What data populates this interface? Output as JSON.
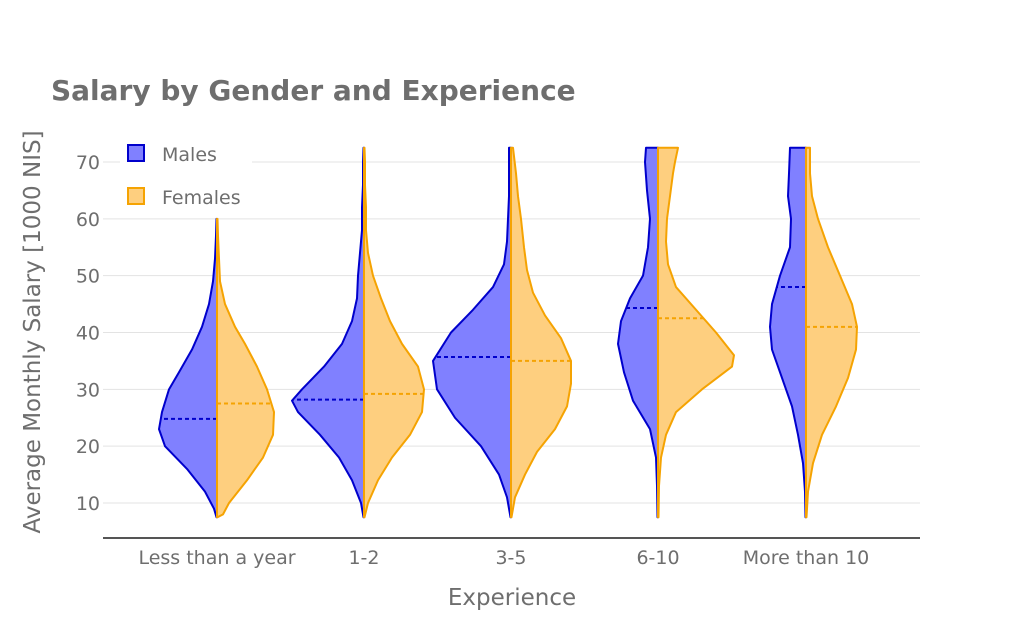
{
  "chart_data": {
    "type": "violin",
    "title": "Salary by Gender and Experience",
    "xlabel": "Experience",
    "ylabel": "Average Monthly Salary [1000 NIS]",
    "categories": [
      "Less than a year",
      "1-2",
      "3-5",
      "6-10",
      "More than 10"
    ],
    "y_ticks": [
      10,
      20,
      30,
      40,
      50,
      60,
      70
    ],
    "ylim": [
      4,
      74
    ],
    "grid": true,
    "legend_position": "top-left",
    "series": [
      {
        "name": "Males",
        "side": "negative",
        "fill_color": "#8080ff",
        "line_color": "#0000cc",
        "medians": [
          24.8,
          28.2,
          35.7,
          44.3,
          48
        ],
        "ranges": [
          [
            7.5,
            60
          ],
          [
            7.5,
            72.5
          ],
          [
            7.5,
            72.5
          ],
          [
            7.5,
            72.5
          ],
          [
            7.5,
            72.5
          ]
        ],
        "profiles": [
          [
            [
              7.5,
              0.5
            ],
            [
              9,
              3
            ],
            [
              12,
              12
            ],
            [
              16,
              30
            ],
            [
              20,
              52
            ],
            [
              23,
              58
            ],
            [
              26,
              55
            ],
            [
              30,
              48
            ],
            [
              33,
              38
            ],
            [
              37,
              25
            ],
            [
              41,
              15
            ],
            [
              45,
              8
            ],
            [
              49,
              4
            ],
            [
              53,
              2
            ],
            [
              57,
              1
            ],
            [
              60,
              0.5
            ]
          ],
          [
            [
              7.5,
              0.5
            ],
            [
              10,
              3
            ],
            [
              14,
              12
            ],
            [
              18,
              25
            ],
            [
              22,
              44
            ],
            [
              26,
              66
            ],
            [
              28,
              72
            ],
            [
              30,
              62
            ],
            [
              34,
              40
            ],
            [
              38,
              22
            ],
            [
              42,
              12
            ],
            [
              46,
              7
            ],
            [
              50,
              6
            ],
            [
              54,
              4
            ],
            [
              58,
              2
            ],
            [
              62,
              2
            ],
            [
              66,
              1
            ],
            [
              70,
              1
            ],
            [
              72.5,
              0.5
            ]
          ],
          [
            [
              7.5,
              0.5
            ],
            [
              11,
              4
            ],
            [
              15,
              12
            ],
            [
              20,
              30
            ],
            [
              25,
              56
            ],
            [
              30,
              74
            ],
            [
              35,
              78
            ],
            [
              40,
              60
            ],
            [
              44,
              38
            ],
            [
              48,
              18
            ],
            [
              52,
              7
            ],
            [
              56,
              4
            ],
            [
              60,
              3
            ],
            [
              64,
              2
            ],
            [
              68,
              2
            ],
            [
              72.5,
              2
            ]
          ],
          [
            [
              7.5,
              0.5
            ],
            [
              13,
              1
            ],
            [
              18,
              2
            ],
            [
              23,
              8
            ],
            [
              28,
              25
            ],
            [
              33,
              34
            ],
            [
              38,
              40
            ],
            [
              42,
              37
            ],
            [
              46,
              28
            ],
            [
              50,
              15
            ],
            [
              55,
              10
            ],
            [
              60,
              8
            ],
            [
              65,
              11
            ],
            [
              70,
              13
            ],
            [
              72.5,
              12
            ]
          ],
          [
            [
              7.5,
              0.5
            ],
            [
              12,
              1
            ],
            [
              17,
              3
            ],
            [
              22,
              8
            ],
            [
              27,
              14
            ],
            [
              32,
              24
            ],
            [
              37,
              34
            ],
            [
              41,
              36
            ],
            [
              45,
              34
            ],
            [
              50,
              26
            ],
            [
              55,
              16
            ],
            [
              60,
              15
            ],
            [
              64,
              18
            ],
            [
              68,
              17
            ],
            [
              72.5,
              16
            ]
          ]
        ]
      },
      {
        "name": "Females",
        "side": "positive",
        "fill_color": "#fecf7f",
        "line_color": "#f5a302",
        "medians": [
          27.5,
          29.2,
          35,
          42.5,
          41
        ],
        "ranges": [
          [
            7.5,
            60
          ],
          [
            7.5,
            72.5
          ],
          [
            7.5,
            72.5
          ],
          [
            7.5,
            72.5
          ],
          [
            7.5,
            72.5
          ]
        ],
        "profiles": [
          [
            [
              7.5,
              0.5
            ],
            [
              8,
              6
            ],
            [
              10,
              12
            ],
            [
              14,
              30
            ],
            [
              18,
              46
            ],
            [
              22,
              56
            ],
            [
              26,
              57
            ],
            [
              30,
              50
            ],
            [
              34,
              40
            ],
            [
              38,
              28
            ],
            [
              41,
              18
            ],
            [
              45,
              8
            ],
            [
              49,
              3
            ],
            [
              53,
              2
            ],
            [
              57,
              1
            ],
            [
              60,
              0.5
            ]
          ],
          [
            [
              7.5,
              0.5
            ],
            [
              10,
              4
            ],
            [
              14,
              14
            ],
            [
              18,
              28
            ],
            [
              22,
              46
            ],
            [
              26,
              58
            ],
            [
              30,
              60
            ],
            [
              34,
              54
            ],
            [
              38,
              38
            ],
            [
              42,
              26
            ],
            [
              46,
              17
            ],
            [
              50,
              9
            ],
            [
              54,
              4
            ],
            [
              58,
              2
            ],
            [
              62,
              2
            ],
            [
              66,
              1
            ],
            [
              70,
              1
            ],
            [
              72.5,
              0.5
            ]
          ],
          [
            [
              7.5,
              0.5
            ],
            [
              11,
              4
            ],
            [
              15,
              14
            ],
            [
              19,
              26
            ],
            [
              23,
              44
            ],
            [
              27,
              56
            ],
            [
              31,
              60
            ],
            [
              35,
              60
            ],
            [
              39,
              50
            ],
            [
              43,
              34
            ],
            [
              47,
              22
            ],
            [
              51,
              16
            ],
            [
              55,
              13
            ],
            [
              60,
              10
            ],
            [
              64,
              7
            ],
            [
              68,
              5
            ],
            [
              72.5,
              2
            ]
          ],
          [
            [
              7.5,
              0.5
            ],
            [
              13,
              1
            ],
            [
              18,
              3
            ],
            [
              22,
              8
            ],
            [
              26,
              18
            ],
            [
              30,
              44
            ],
            [
              34,
              74
            ],
            [
              36,
              76
            ],
            [
              40,
              58
            ],
            [
              44,
              38
            ],
            [
              48,
              18
            ],
            [
              52,
              10
            ],
            [
              56,
              8
            ],
            [
              60,
              9
            ],
            [
              64,
              12
            ],
            [
              68,
              15
            ],
            [
              70,
              17
            ],
            [
              72.5,
              20
            ]
          ],
          [
            [
              7.5,
              0.5
            ],
            [
              12,
              2
            ],
            [
              17,
              7
            ],
            [
              22,
              16
            ],
            [
              27,
              30
            ],
            [
              32,
              42
            ],
            [
              37,
              50
            ],
            [
              41,
              51
            ],
            [
              45,
              46
            ],
            [
              50,
              34
            ],
            [
              55,
              22
            ],
            [
              60,
              12
            ],
            [
              64,
              6
            ],
            [
              68,
              4
            ],
            [
              72.5,
              4
            ]
          ]
        ]
      }
    ]
  }
}
